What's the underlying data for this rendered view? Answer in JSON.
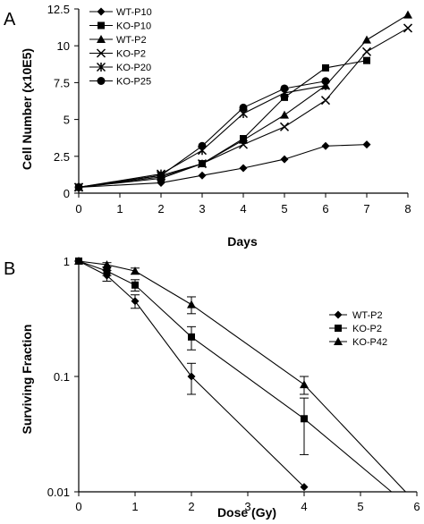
{
  "chart_data": [
    {
      "panel": "A",
      "type": "line",
      "xlabel": "Days",
      "ylabel": "Cell Number (x10E5)",
      "xlim": [
        0,
        8
      ],
      "ylim": [
        0,
        12.5
      ],
      "xticks": [
        "0",
        "1",
        "2",
        "3",
        "4",
        "5",
        "6",
        "7",
        "8"
      ],
      "yticks": [
        "0",
        "2.5",
        "5",
        "7.5",
        "10",
        "12.5"
      ],
      "grid": false,
      "legend_position": "top-left",
      "series": [
        {
          "name": "WT-P10",
          "marker": "diamond",
          "x": [
            0,
            2,
            3,
            4,
            5,
            6,
            7
          ],
          "y": [
            0.4,
            0.7,
            1.2,
            1.7,
            2.3,
            3.2,
            3.3
          ]
        },
        {
          "name": "KO-P10",
          "marker": "square",
          "x": [
            0,
            2,
            3,
            4,
            5,
            6,
            7
          ],
          "y": [
            0.4,
            1.0,
            2.0,
            3.7,
            6.5,
            8.5,
            9.0
          ]
        },
        {
          "name": "WT-P2",
          "marker": "triangle",
          "x": [
            0,
            2,
            3,
            4,
            5,
            6,
            7,
            8
          ],
          "y": [
            0.4,
            1.1,
            2.0,
            3.6,
            5.3,
            7.3,
            10.4,
            12.1
          ]
        },
        {
          "name": "KO-P2",
          "marker": "x",
          "x": [
            0,
            2,
            3,
            4,
            5,
            6,
            7,
            8
          ],
          "y": [
            0.4,
            1.2,
            2.0,
            3.3,
            4.5,
            6.3,
            9.6,
            11.2
          ]
        },
        {
          "name": "KO-P20",
          "marker": "star",
          "x": [
            0,
            2,
            3,
            4,
            5,
            6
          ],
          "y": [
            0.4,
            1.3,
            2.9,
            5.4,
            6.8,
            7.3
          ]
        },
        {
          "name": "KO-P25",
          "marker": "circle",
          "x": [
            0,
            2,
            3,
            4,
            5,
            6
          ],
          "y": [
            0.4,
            1.2,
            3.2,
            5.8,
            7.1,
            7.6
          ]
        }
      ]
    },
    {
      "panel": "B",
      "type": "line",
      "xlabel": "Dose (Gy)",
      "ylabel": "Surviving Fraction",
      "xlim": [
        0,
        6
      ],
      "ylim": [
        0.01,
        1
      ],
      "yscale": "log",
      "xticks": [
        "0",
        "1",
        "2",
        "3",
        "4",
        "5",
        "6"
      ],
      "yticks": [
        "0.01",
        "0.1",
        "1"
      ],
      "grid": false,
      "legend_position": "top-right",
      "series": [
        {
          "name": "WT-P2",
          "marker": "diamond",
          "x": [
            0,
            0.5,
            1,
            2,
            4
          ],
          "y": [
            1,
            0.75,
            0.45,
            0.1,
            0.011
          ],
          "err": [
            0,
            0.08,
            0.06,
            0.03,
            0
          ]
        },
        {
          "name": "KO-P2",
          "marker": "square",
          "x": [
            0,
            0.5,
            1,
            2,
            4
          ],
          "y": [
            1,
            0.82,
            0.62,
            0.22,
            0.043
          ],
          "err": [
            0,
            0.07,
            0.07,
            0.05,
            0.022
          ]
        },
        {
          "name": "KO-P42",
          "marker": "triangle",
          "x": [
            0,
            0.5,
            1,
            2,
            4
          ],
          "y": [
            1,
            0.93,
            0.82,
            0.42,
            0.085
          ],
          "err": [
            0,
            0.04,
            0.05,
            0.07,
            0.015
          ]
        }
      ],
      "extra_lines": [
        {
          "x": [
            4,
            5.55
          ],
          "y": [
            0.043,
            0.01
          ]
        },
        {
          "x": [
            4,
            5.8
          ],
          "y": [
            0.085,
            0.01
          ]
        }
      ]
    }
  ]
}
